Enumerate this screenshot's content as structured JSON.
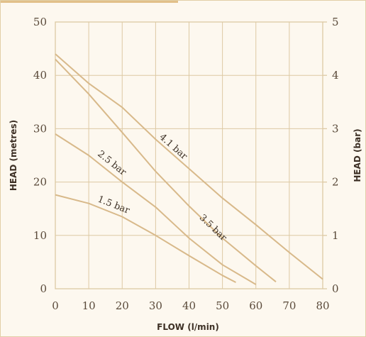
{
  "colors": {
    "background": "#fdf8ef",
    "grid": "#ddc9a3",
    "curve": "#d8b98a",
    "accent": "#e2c089",
    "text": "#3d3025"
  },
  "chart_data": {
    "type": "line",
    "xlabel": "FLOW (l/min)",
    "ylabel": "HEAD (metres)",
    "y2label": "HEAD (bar)",
    "xlim": [
      0,
      80
    ],
    "ylim": [
      0,
      50
    ],
    "y2lim": [
      0,
      5
    ],
    "x_ticks": [
      "0",
      "10",
      "20",
      "30",
      "40",
      "50",
      "60",
      "70",
      "80"
    ],
    "y_ticks": [
      "0",
      "10",
      "20",
      "30",
      "40",
      "50"
    ],
    "y2_ticks": [
      "0",
      "1",
      "2",
      "3",
      "4",
      "5"
    ],
    "grid": true,
    "series": [
      {
        "name": "1.5 bar",
        "points": [
          [
            0,
            17.6
          ],
          [
            10,
            16
          ],
          [
            20,
            13.5
          ],
          [
            30,
            10
          ],
          [
            40,
            6.2
          ],
          [
            50,
            2.5
          ],
          [
            54,
            1.2
          ]
        ]
      },
      {
        "name": "2.5 bar",
        "points": [
          [
            0,
            29
          ],
          [
            10,
            25
          ],
          [
            20,
            20
          ],
          [
            30,
            15.3
          ],
          [
            40,
            9.5
          ],
          [
            50,
            4.5
          ],
          [
            60,
            0.8
          ]
        ]
      },
      {
        "name": "3.5 bar",
        "points": [
          [
            0,
            43
          ],
          [
            10,
            36.5
          ],
          [
            20,
            29.3
          ],
          [
            30,
            22
          ],
          [
            40,
            15.5
          ],
          [
            50,
            9.5
          ],
          [
            60,
            4.3
          ],
          [
            66,
            1.3
          ]
        ]
      },
      {
        "name": "4.1 bar",
        "points": [
          [
            0,
            44
          ],
          [
            10,
            38.5
          ],
          [
            20,
            34
          ],
          [
            30,
            28
          ],
          [
            40,
            22.5
          ],
          [
            50,
            17
          ],
          [
            60,
            12
          ],
          [
            70,
            6.8
          ],
          [
            80,
            1.8
          ]
        ]
      }
    ]
  }
}
